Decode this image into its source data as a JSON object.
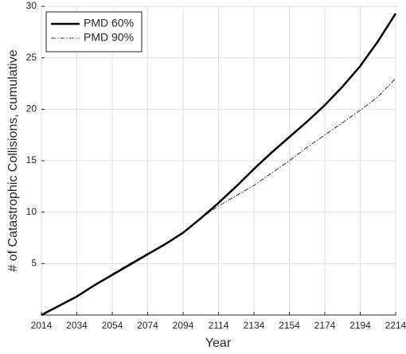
{
  "chart_data": {
    "type": "line",
    "xlabel": "Year",
    "ylabel": "# of Catastrophic Collisions, cumulative",
    "x": [
      2014,
      2024,
      2034,
      2044,
      2054,
      2064,
      2074,
      2084,
      2094,
      2104,
      2114,
      2124,
      2134,
      2144,
      2154,
      2164,
      2174,
      2184,
      2194,
      2204,
      2214
    ],
    "series": [
      {
        "name": "PMD 60%",
        "color": "#000000",
        "style": "solid",
        "values": [
          0,
          0.9,
          1.8,
          2.9,
          3.9,
          4.9,
          5.9,
          6.9,
          8.0,
          9.4,
          10.9,
          12.5,
          14.2,
          15.8,
          17.3,
          18.8,
          20.4,
          22.2,
          24.2,
          26.6,
          29.3
        ]
      },
      {
        "name": "PMD 90%",
        "color": "#000000",
        "style": "dashdot",
        "values": [
          0,
          0.9,
          1.8,
          2.9,
          4.0,
          5.0,
          6.0,
          6.9,
          8.0,
          9.4,
          10.6,
          11.6,
          12.6,
          13.8,
          15.0,
          16.3,
          17.5,
          18.7,
          19.9,
          21.2,
          23.0
        ]
      }
    ],
    "xlim": [
      2014,
      2214
    ],
    "xticks": [
      2014,
      2034,
      2054,
      2074,
      2094,
      2114,
      2134,
      2154,
      2174,
      2194,
      2214
    ],
    "ylim": [
      0,
      30
    ],
    "yticks": [
      5,
      10,
      15,
      20,
      25,
      30
    ],
    "grid": true,
    "legend": "upper-left"
  }
}
